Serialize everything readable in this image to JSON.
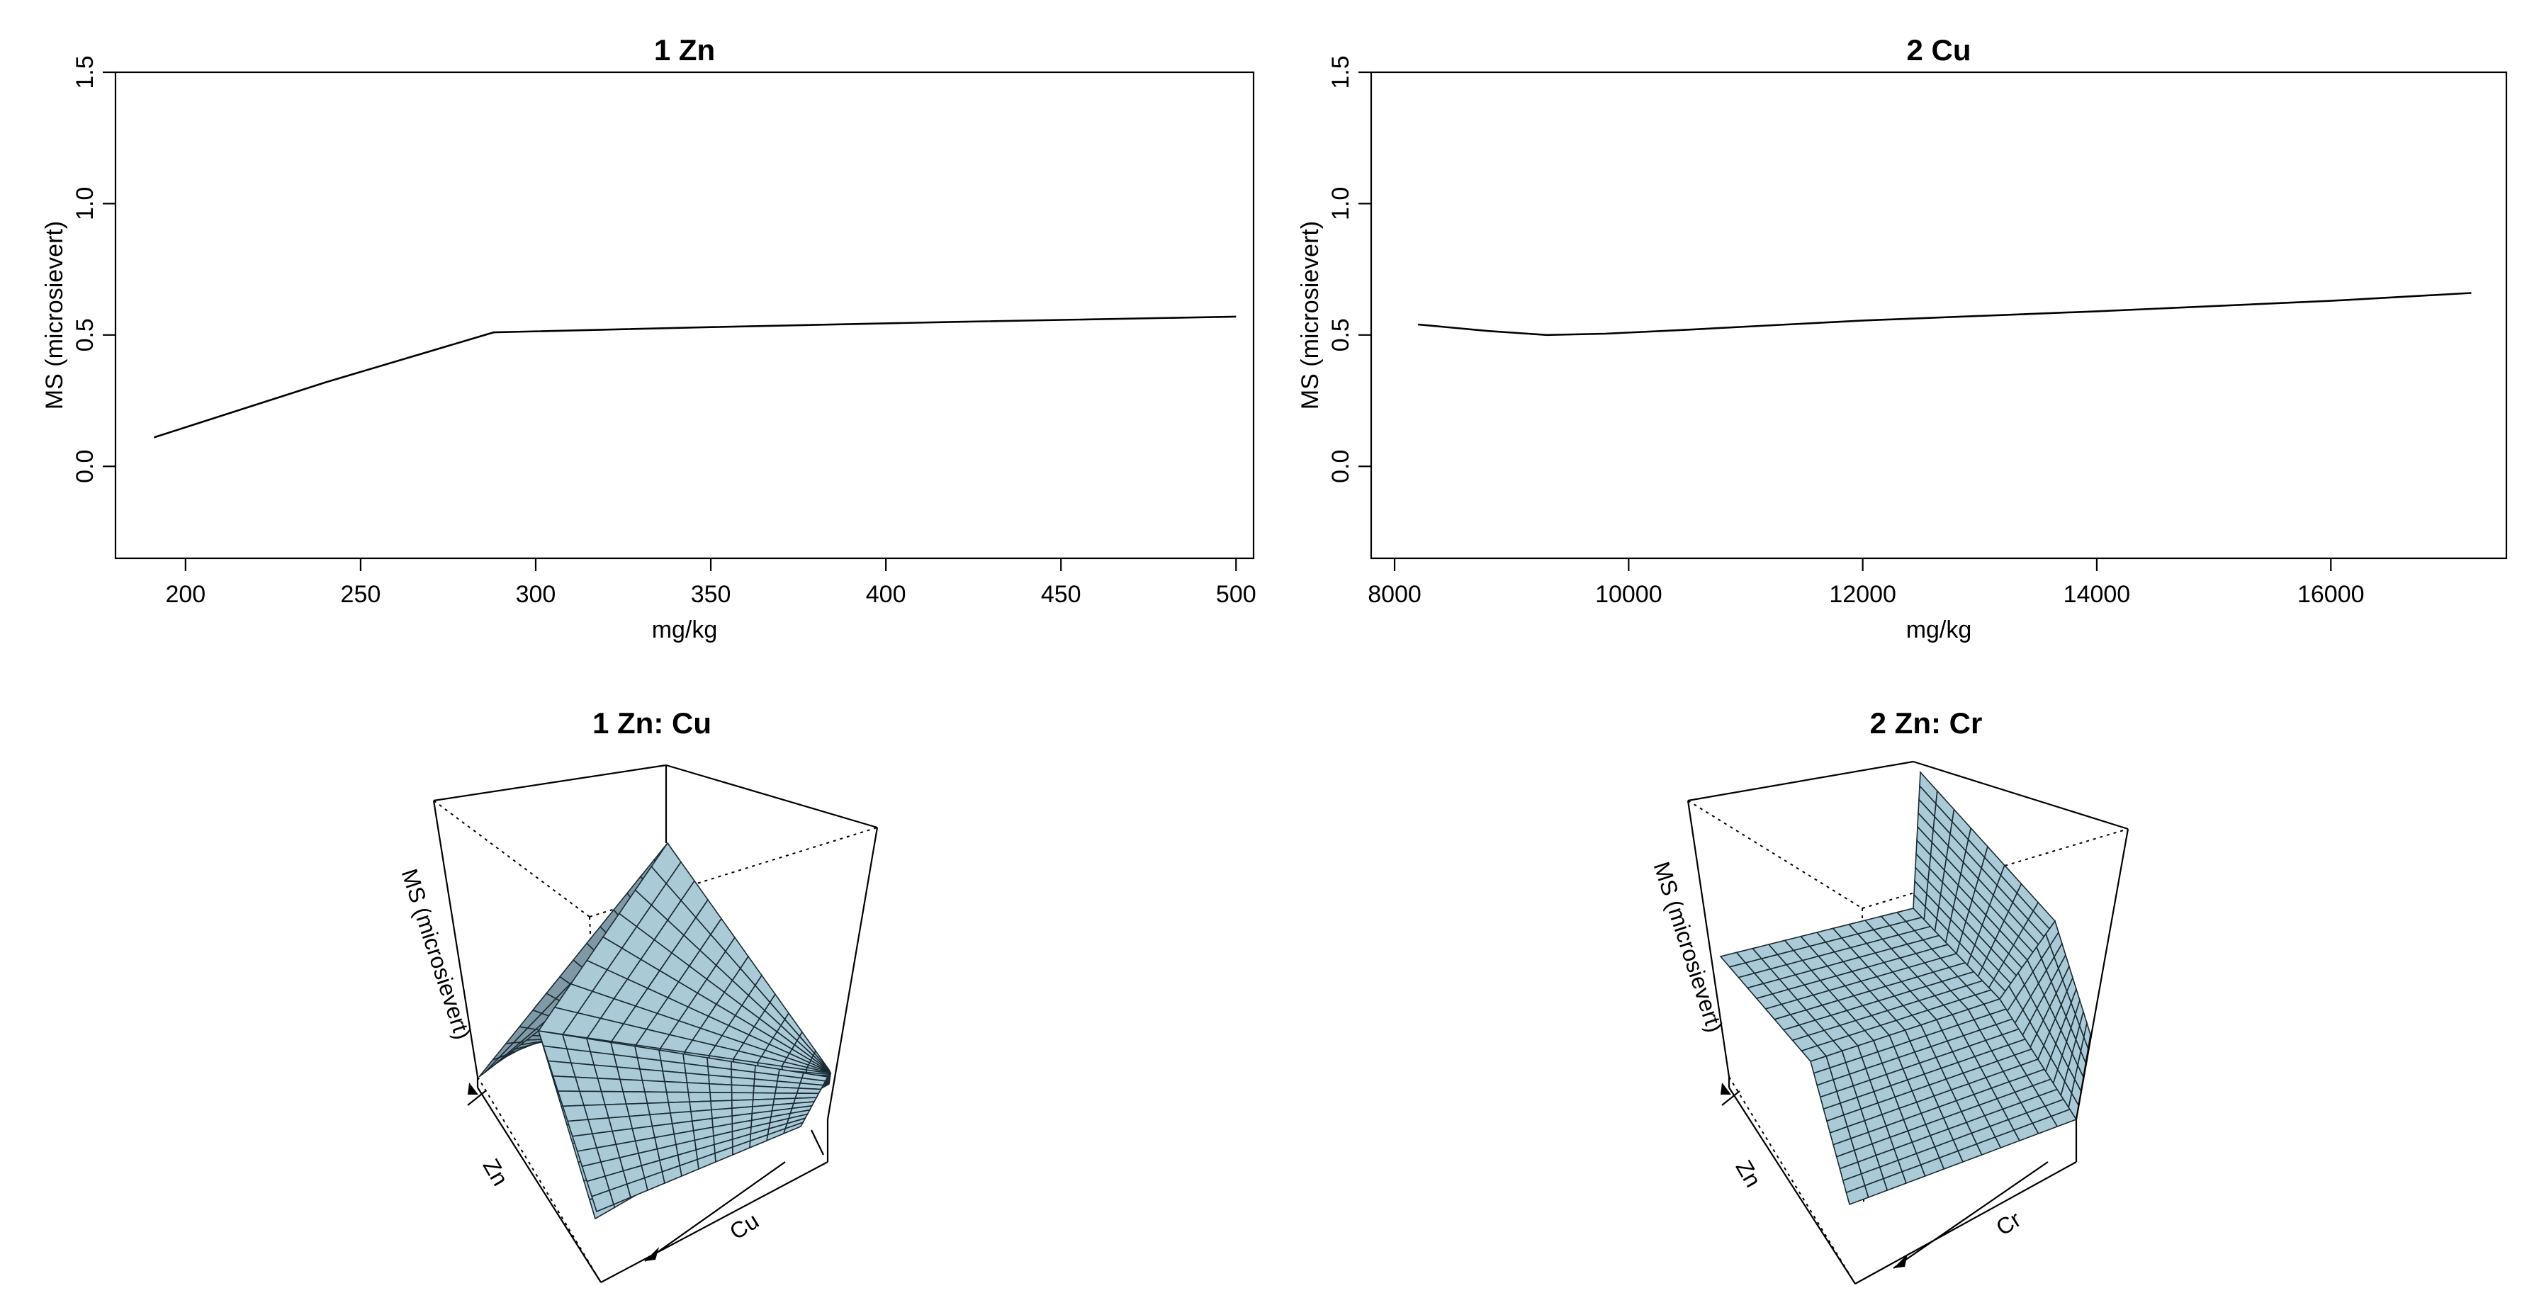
{
  "chart_data": [
    {
      "type": "line",
      "title": "1  Zn",
      "xlabel": "mg/kg",
      "ylabel": "MS (microsievert)",
      "xlim": [
        180,
        505
      ],
      "ylim": [
        -0.35,
        1.5
      ],
      "xticks": [
        "200",
        "250",
        "300",
        "350",
        "400",
        "450",
        "500"
      ],
      "yticks": [
        "0.0",
        "0.5",
        "1.0",
        "1.5"
      ],
      "series": [
        {
          "x": [
            191,
            240,
            288,
            350,
            420,
            500
          ],
          "y": [
            0.11,
            0.32,
            0.51,
            0.53,
            0.55,
            0.57
          ]
        }
      ]
    },
    {
      "type": "line",
      "title": "2  Cu",
      "xlabel": "mg/kg",
      "ylabel": "MS (microsievert)",
      "xlim": [
        7800,
        17500
      ],
      "ylim": [
        -0.35,
        1.5
      ],
      "xticks": [
        "8000",
        "10000",
        "12000",
        "14000",
        "16000"
      ],
      "yticks": [
        "0.0",
        "0.5",
        "1.0",
        "1.5"
      ],
      "series": [
        {
          "x": [
            8200,
            8800,
            9300,
            9800,
            10500,
            12000,
            14000,
            16000,
            17200
          ],
          "y": [
            0.54,
            0.515,
            0.5,
            0.505,
            0.52,
            0.555,
            0.59,
            0.63,
            0.66
          ]
        }
      ]
    },
    {
      "type": "surface",
      "title": "1 Zn: Cu",
      "zlabel": "MS (microsievert)",
      "xlabel": "Zn",
      "ylabel": "Cu"
    },
    {
      "type": "surface",
      "title": "2 Zn: Cr",
      "zlabel": "MS (microsievert)",
      "xlabel": "Zn",
      "ylabel": "Cr"
    }
  ]
}
